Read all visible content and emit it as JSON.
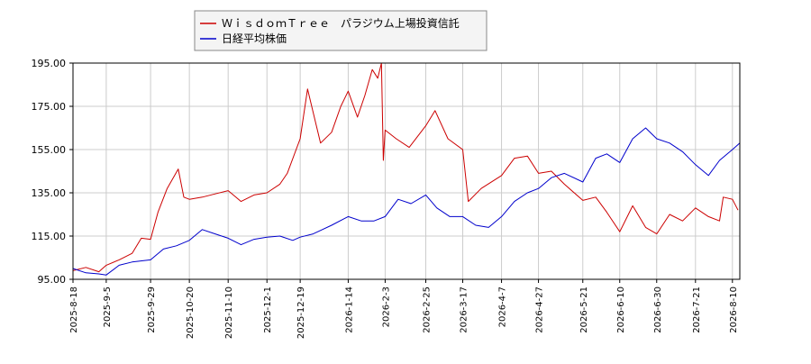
{
  "chart_data": {
    "type": "line",
    "title": "",
    "xlabel": "",
    "ylabel": "",
    "ylim": [
      95,
      195
    ],
    "y_ticks": [
      "95.00",
      "115.00",
      "135.00",
      "155.00",
      "175.00",
      "195.00"
    ],
    "x_ticks": [
      "2025-8-18",
      "2025-9-5",
      "2025-9-29",
      "2025-10-20",
      "2025-11-10",
      "2025-12-1",
      "2025-12-19",
      "2026-1-14",
      "2026-2-3",
      "2026-2-25",
      "2026-3-17",
      "2026-4-7",
      "2026-4-27",
      "2026-5-21",
      "2026-6-10",
      "2026-6-30",
      "2026-7-21",
      "2026-8-10"
    ],
    "grid": true,
    "legend_position": "top-left",
    "series": [
      {
        "name": "ＷｉｓｄｏｍＴｒｅｅ　パラジウム上場投資信託",
        "color": "#cc0000",
        "points": [
          [
            "2025-8-18",
            99.0
          ],
          [
            "2025-8-25",
            100.5
          ],
          [
            "2025-9-1",
            98.5
          ],
          [
            "2025-9-5",
            101.5
          ],
          [
            "2025-9-12",
            104.0
          ],
          [
            "2025-9-19",
            107.0
          ],
          [
            "2025-9-24",
            114.0
          ],
          [
            "2025-9-29",
            113.5
          ],
          [
            "2025-10-3",
            126.0
          ],
          [
            "2025-10-8",
            137.0
          ],
          [
            "2025-10-14",
            146.0
          ],
          [
            "2025-10-17",
            133.0
          ],
          [
            "2025-10-20",
            132.0
          ],
          [
            "2025-10-27",
            133.0
          ],
          [
            "2025-11-3",
            134.5
          ],
          [
            "2025-11-10",
            136.0
          ],
          [
            "2025-11-17",
            131.0
          ],
          [
            "2025-11-24",
            134.0
          ],
          [
            "2025-12-1",
            135.0
          ],
          [
            "2025-12-8",
            139.0
          ],
          [
            "2025-12-12",
            144.0
          ],
          [
            "2025-12-19",
            160.0
          ],
          [
            "2025-12-23",
            183.0
          ],
          [
            "2025-12-30",
            158.0
          ],
          [
            "2026-1-5",
            163.0
          ],
          [
            "2026-1-10",
            175.0
          ],
          [
            "2026-1-14",
            182.0
          ],
          [
            "2026-1-19",
            170.0
          ],
          [
            "2026-1-23",
            180.0
          ],
          [
            "2026-1-27",
            192.0
          ],
          [
            "2026-1-30",
            188.0
          ],
          [
            "2026-2-1",
            195.0
          ],
          [
            "2026-2-2",
            150.0
          ],
          [
            "2026-2-3",
            164.0
          ],
          [
            "2026-2-9",
            160.0
          ],
          [
            "2026-2-16",
            156.0
          ],
          [
            "2026-2-25",
            166.0
          ],
          [
            "2026-3-2",
            173.0
          ],
          [
            "2026-3-9",
            160.0
          ],
          [
            "2026-3-17",
            155.0
          ],
          [
            "2026-3-20",
            131.0
          ],
          [
            "2026-3-27",
            137.0
          ],
          [
            "2026-4-7",
            143.0
          ],
          [
            "2026-4-14",
            151.0
          ],
          [
            "2026-4-21",
            152.0
          ],
          [
            "2026-4-27",
            144.0
          ],
          [
            "2026-5-4",
            145.0
          ],
          [
            "2026-5-11",
            139.0
          ],
          [
            "2026-5-21",
            131.5
          ],
          [
            "2026-5-28",
            133.0
          ],
          [
            "2026-6-3",
            126.0
          ],
          [
            "2026-6-10",
            117.0
          ],
          [
            "2026-6-17",
            129.0
          ],
          [
            "2026-6-24",
            119.0
          ],
          [
            "2026-6-30",
            116.0
          ],
          [
            "2026-7-7",
            125.0
          ],
          [
            "2026-7-14",
            122.0
          ],
          [
            "2026-7-21",
            128.0
          ],
          [
            "2026-7-28",
            124.0
          ],
          [
            "2026-8-3",
            122.0
          ],
          [
            "2026-8-5",
            133.0
          ],
          [
            "2026-8-10",
            132.0
          ],
          [
            "2026-8-13",
            127.0
          ]
        ]
      },
      {
        "name": "日経平均株価",
        "color": "#0000cc",
        "points": [
          [
            "2025-8-18",
            100.0
          ],
          [
            "2025-8-25",
            98.0
          ],
          [
            "2025-9-1",
            97.5
          ],
          [
            "2025-9-5",
            97.0
          ],
          [
            "2025-9-12",
            101.5
          ],
          [
            "2025-9-19",
            103.0
          ],
          [
            "2025-9-29",
            104.0
          ],
          [
            "2025-10-6",
            109.0
          ],
          [
            "2025-10-13",
            110.5
          ],
          [
            "2025-10-20",
            113.0
          ],
          [
            "2025-10-27",
            118.0
          ],
          [
            "2025-11-3",
            116.0
          ],
          [
            "2025-11-10",
            114.0
          ],
          [
            "2025-11-17",
            111.0
          ],
          [
            "2025-11-24",
            113.5
          ],
          [
            "2025-12-1",
            114.5
          ],
          [
            "2025-12-8",
            115.0
          ],
          [
            "2025-12-15",
            113.0
          ],
          [
            "2025-12-19",
            114.5
          ],
          [
            "2025-12-26",
            116.0
          ],
          [
            "2026-1-5",
            120.0
          ],
          [
            "2026-1-14",
            124.0
          ],
          [
            "2026-1-21",
            122.0
          ],
          [
            "2026-1-28",
            122.0
          ],
          [
            "2026-2-3",
            124.0
          ],
          [
            "2026-2-10",
            132.0
          ],
          [
            "2026-2-17",
            130.0
          ],
          [
            "2026-2-25",
            134.0
          ],
          [
            "2026-3-3",
            128.0
          ],
          [
            "2026-3-10",
            124.0
          ],
          [
            "2026-3-17",
            124.0
          ],
          [
            "2026-3-24",
            120.0
          ],
          [
            "2026-3-31",
            119.0
          ],
          [
            "2026-4-7",
            124.0
          ],
          [
            "2026-4-14",
            131.0
          ],
          [
            "2026-4-21",
            135.0
          ],
          [
            "2026-4-27",
            137.0
          ],
          [
            "2026-5-4",
            142.0
          ],
          [
            "2026-5-11",
            144.0
          ],
          [
            "2026-5-21",
            140.0
          ],
          [
            "2026-5-28",
            151.0
          ],
          [
            "2026-6-3",
            153.0
          ],
          [
            "2026-6-10",
            149.0
          ],
          [
            "2026-6-17",
            160.0
          ],
          [
            "2026-6-24",
            165.0
          ],
          [
            "2026-6-30",
            160.0
          ],
          [
            "2026-7-7",
            158.0
          ],
          [
            "2026-7-14",
            154.0
          ],
          [
            "2026-7-21",
            148.0
          ],
          [
            "2026-7-28",
            143.0
          ],
          [
            "2026-8-3",
            150.0
          ],
          [
            "2026-8-10",
            155.0
          ],
          [
            "2026-8-14",
            158.0
          ]
        ]
      }
    ]
  }
}
